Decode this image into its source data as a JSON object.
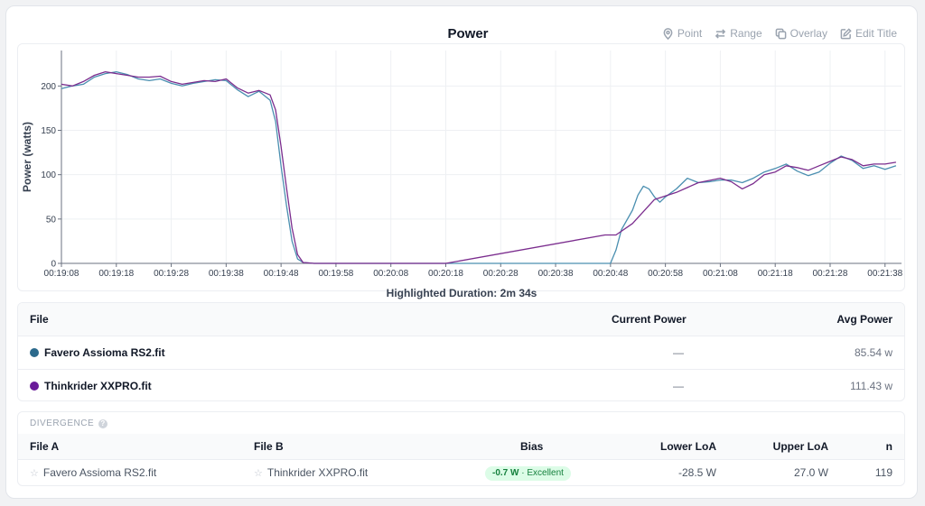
{
  "chart": {
    "title": "Power",
    "highlighted_duration": "Highlighted Duration: 2m 34s"
  },
  "toolbar": {
    "point": "Point",
    "range": "Range",
    "overlay": "Overlay",
    "edit_title": "Edit Title"
  },
  "files_table": {
    "headers": {
      "file": "File",
      "current_power": "Current Power",
      "avg_power": "Avg Power"
    },
    "rows": [
      {
        "name": "Favero Assioma RS2.fit",
        "current": "—",
        "avg": "85.54 w",
        "color": "#2c6a8c"
      },
      {
        "name": "Thinkrider XXPRO.fit",
        "current": "—",
        "avg": "111.43 w",
        "color": "#6a1b9a"
      }
    ]
  },
  "divergence": {
    "label": "DIVERGENCE",
    "help_icon": "?",
    "headers": {
      "file_a": "File A",
      "file_b": "File B",
      "bias": "Bias",
      "lower_loa": "Lower LoA",
      "upper_loa": "Upper LoA",
      "n": "n"
    },
    "row": {
      "file_a": "Favero Assioma RS2.fit",
      "file_b": "Thinkrider XXPRO.fit",
      "bias": "-0.7 W",
      "bias_rating": "· Excellent",
      "lower_loa": "-28.5 W",
      "upper_loa": "27.0 W",
      "n": "119"
    }
  },
  "chart_data": {
    "type": "line",
    "title": "Power",
    "ylabel": "Power (watts)",
    "xlabel": "",
    "ylim": [
      0,
      240
    ],
    "yticks": [
      0,
      50,
      100,
      150,
      200
    ],
    "xlim": [
      "00:19:08",
      "00:21:41"
    ],
    "xticks": [
      "00:19:08",
      "00:19:18",
      "00:19:28",
      "00:19:38",
      "00:19:48",
      "00:19:58",
      "00:20:08",
      "00:20:18",
      "00:20:28",
      "00:20:38",
      "00:20:48",
      "00:20:58",
      "00:21:08",
      "00:21:18",
      "00:21:28",
      "00:21:38"
    ],
    "grid": true,
    "series": [
      {
        "color": "#4a8fb0",
        "points": [
          [
            "00:19:08",
            197
          ],
          [
            "00:19:10",
            200
          ],
          [
            "00:19:12",
            202
          ],
          [
            "00:19:14",
            210
          ],
          [
            "00:19:16",
            214
          ],
          [
            "00:19:18",
            216
          ],
          [
            "00:19:20",
            213
          ],
          [
            "00:19:22",
            208
          ],
          [
            "00:19:24",
            206
          ],
          [
            "00:19:26",
            208
          ],
          [
            "00:19:28",
            203
          ],
          [
            "00:19:30",
            200
          ],
          [
            "00:19:32",
            203
          ],
          [
            "00:19:34",
            205
          ],
          [
            "00:19:36",
            207
          ],
          [
            "00:19:38",
            206
          ],
          [
            "00:19:40",
            196
          ],
          [
            "00:19:42",
            188
          ],
          [
            "00:19:44",
            194
          ],
          [
            "00:19:46",
            184
          ],
          [
            "00:19:47",
            160
          ],
          [
            "00:19:48",
            110
          ],
          [
            "00:19:49",
            65
          ],
          [
            "00:19:50",
            25
          ],
          [
            "00:19:51",
            5
          ],
          [
            "00:19:52",
            1
          ],
          [
            "00:19:54",
            0
          ],
          [
            "00:20:48",
            0
          ],
          [
            "00:20:49",
            15
          ],
          [
            "00:20:50",
            38
          ],
          [
            "00:20:52",
            60
          ],
          [
            "00:20:53",
            77
          ],
          [
            "00:20:54",
            87
          ],
          [
            "00:20:55",
            84
          ],
          [
            "00:20:56",
            75
          ],
          [
            "00:20:57",
            69
          ],
          [
            "00:20:58",
            75
          ],
          [
            "00:21:00",
            84
          ],
          [
            "00:21:02",
            96
          ],
          [
            "00:21:04",
            91
          ],
          [
            "00:21:06",
            92
          ],
          [
            "00:21:08",
            94
          ],
          [
            "00:21:10",
            94
          ],
          [
            "00:21:12",
            91
          ],
          [
            "00:21:14",
            96
          ],
          [
            "00:21:16",
            103
          ],
          [
            "00:21:18",
            107
          ],
          [
            "00:21:20",
            112
          ],
          [
            "00:21:22",
            104
          ],
          [
            "00:21:24",
            99
          ],
          [
            "00:21:26",
            103
          ],
          [
            "00:21:28",
            113
          ],
          [
            "00:21:30",
            121
          ],
          [
            "00:21:32",
            116
          ],
          [
            "00:21:34",
            107
          ],
          [
            "00:21:36",
            110
          ],
          [
            "00:21:38",
            106
          ],
          [
            "00:21:40",
            110
          ]
        ]
      },
      {
        "color": "#7b2d8e",
        "points": [
          [
            "00:19:08",
            202
          ],
          [
            "00:19:10",
            200
          ],
          [
            "00:19:12",
            205
          ],
          [
            "00:19:14",
            212
          ],
          [
            "00:19:16",
            216
          ],
          [
            "00:19:18",
            214
          ],
          [
            "00:19:20",
            212
          ],
          [
            "00:19:22",
            210
          ],
          [
            "00:19:24",
            210
          ],
          [
            "00:19:26",
            211
          ],
          [
            "00:19:28",
            205
          ],
          [
            "00:19:30",
            202
          ],
          [
            "00:19:32",
            204
          ],
          [
            "00:19:34",
            206
          ],
          [
            "00:19:36",
            205
          ],
          [
            "00:19:38",
            208
          ],
          [
            "00:19:40",
            198
          ],
          [
            "00:19:42",
            192
          ],
          [
            "00:19:44",
            195
          ],
          [
            "00:19:46",
            190
          ],
          [
            "00:19:47",
            173
          ],
          [
            "00:19:48",
            132
          ],
          [
            "00:19:49",
            85
          ],
          [
            "00:19:50",
            40
          ],
          [
            "00:19:51",
            10
          ],
          [
            "00:19:52",
            1
          ],
          [
            "00:19:54",
            0
          ],
          [
            "00:20:18",
            0
          ],
          [
            "00:20:47",
            32
          ],
          [
            "00:20:49",
            32
          ],
          [
            "00:20:52",
            45
          ],
          [
            "00:20:56",
            72
          ],
          [
            "00:21:00",
            80
          ],
          [
            "00:21:04",
            91
          ],
          [
            "00:21:08",
            96
          ],
          [
            "00:21:10",
            92
          ],
          [
            "00:21:12",
            84
          ],
          [
            "00:21:14",
            90
          ],
          [
            "00:21:16",
            100
          ],
          [
            "00:21:18",
            103
          ],
          [
            "00:21:20",
            110
          ],
          [
            "00:21:22",
            108
          ],
          [
            "00:21:24",
            105
          ],
          [
            "00:21:26",
            110
          ],
          [
            "00:21:28",
            115
          ],
          [
            "00:21:30",
            120
          ],
          [
            "00:21:32",
            117
          ],
          [
            "00:21:34",
            110
          ],
          [
            "00:21:36",
            112
          ],
          [
            "00:21:38",
            112
          ],
          [
            "00:21:40",
            114
          ]
        ]
      }
    ]
  }
}
